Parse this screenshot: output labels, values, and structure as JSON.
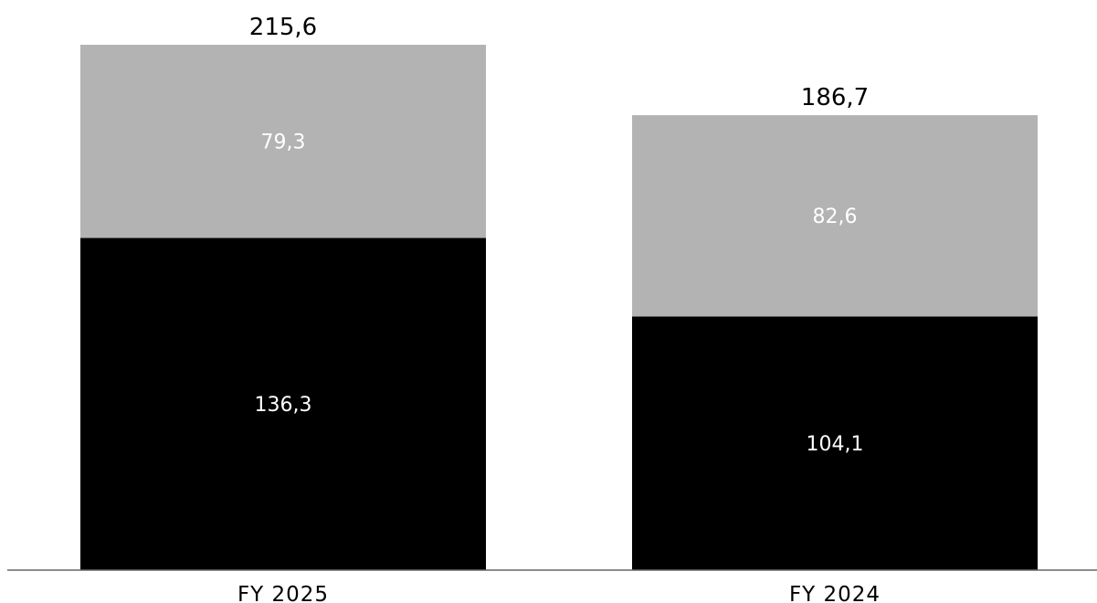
{
  "chart_data": {
    "type": "bar",
    "stacked": true,
    "categories": [
      "FY 2025",
      "FY 2024"
    ],
    "series": [
      {
        "values": [
          136.3,
          104.1
        ],
        "value_labels": [
          "136,3",
          "104,1"
        ],
        "color": "#000000"
      },
      {
        "values": [
          79.3,
          82.6
        ],
        "value_labels": [
          "79,3",
          "82,6"
        ],
        "color": "#b3b3b3"
      }
    ],
    "totals": [
      215.6,
      186.7
    ],
    "total_labels": [
      "215,6",
      "186,7"
    ],
    "ylim": [
      0,
      215.6
    ],
    "grid": false,
    "legend": "none",
    "axis_color": "#666666",
    "segment_label_color": "#ffffff",
    "total_label_color": "#000000"
  }
}
